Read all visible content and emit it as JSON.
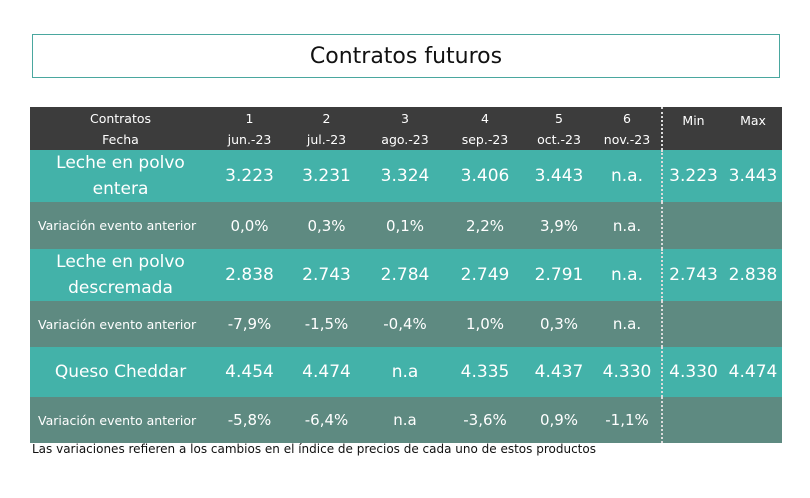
{
  "title": "Contratos futuros",
  "header": {
    "contracts_label": "Contratos",
    "date_label": "Fecha",
    "columns": [
      {
        "num": "1",
        "date": "jun.-23"
      },
      {
        "num": "2",
        "date": "jul.-23"
      },
      {
        "num": "3",
        "date": "ago.-23"
      },
      {
        "num": "4",
        "date": "sep.-23"
      },
      {
        "num": "5",
        "date": "oct.-23"
      },
      {
        "num": "6",
        "date": "nov.-23"
      }
    ],
    "min_label": "Min",
    "max_label": "Max"
  },
  "rows": [
    {
      "label_line1": "Leche en polvo",
      "label_line2": "entera",
      "values": [
        "3.223",
        "3.231",
        "3.324",
        "3.406",
        "3.443",
        "n.a."
      ],
      "min": "3.223",
      "max": "3.443"
    },
    {
      "label": "Variación evento anterior",
      "values": [
        "0,0%",
        "0,3%",
        "0,1%",
        "2,2%",
        "3,9%",
        "n.a."
      ]
    },
    {
      "label_line1": "Leche en polvo",
      "label_line2": "descremada",
      "values": [
        "2.838",
        "2.743",
        "2.784",
        "2.749",
        "2.791",
        "n.a."
      ],
      "min": "2.743",
      "max": "2.838"
    },
    {
      "label": "Variación evento anterior",
      "values": [
        "-7,9%",
        "-1,5%",
        "-0,4%",
        "1,0%",
        "0,3%",
        "n.a."
      ]
    },
    {
      "label": "Queso Cheddar",
      "values": [
        "4.454",
        "4.474",
        "n.a",
        "4.335",
        "4.437",
        "4.330"
      ],
      "min": "4.330",
      "max": "4.474"
    },
    {
      "label": "Variación evento anterior",
      "values": [
        "-5,8%",
        "-6,4%",
        "n.a",
        "-3,6%",
        "0,9%",
        "-1,1%"
      ]
    }
  ],
  "colors": {
    "header_bg": "#3c3c3c",
    "product_row_bg": "#43b2a9",
    "variation_row_bg": "#5e8a81",
    "title_border": "#4aa79f"
  },
  "footnote": "Las variaciones refieren a los cambios en el índice de precios de cada uno de estos productos"
}
